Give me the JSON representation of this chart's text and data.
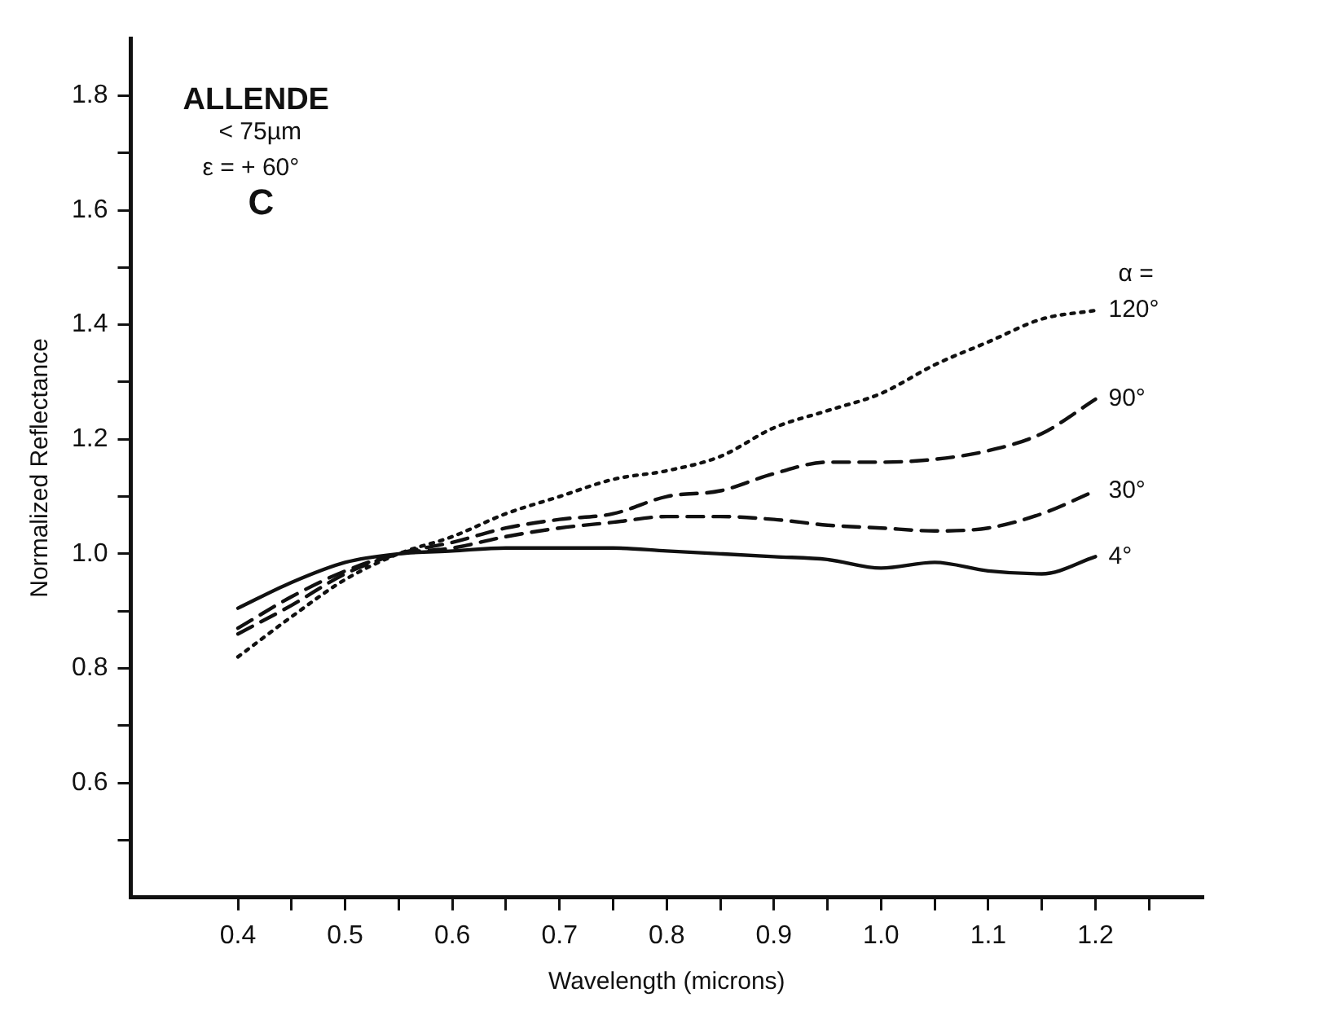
{
  "chart_data": {
    "type": "line",
    "xlabel": "Wavelength (microns)",
    "ylabel": "Normalized Reflectance",
    "legend_title": "α =",
    "annotations": [
      "ALLENDE",
      "< 75µm",
      "ε = + 60°",
      "C"
    ],
    "x": [
      0.4,
      0.45,
      0.5,
      0.55,
      0.6,
      0.65,
      0.7,
      0.75,
      0.8,
      0.85,
      0.9,
      0.95,
      1.0,
      1.05,
      1.1,
      1.15,
      1.2
    ],
    "series": [
      {
        "name": "120°",
        "color": "#111111",
        "line_style": "dotted",
        "values": [
          0.82,
          0.89,
          0.955,
          1.0,
          1.03,
          1.07,
          1.1,
          1.13,
          1.145,
          1.17,
          1.22,
          1.25,
          1.28,
          1.33,
          1.37,
          1.41,
          1.425
        ]
      },
      {
        "name": "90°",
        "color": "#111111",
        "line_style": "dashed",
        "values": [
          0.86,
          0.91,
          0.965,
          1.0,
          1.02,
          1.045,
          1.06,
          1.07,
          1.1,
          1.11,
          1.14,
          1.16,
          1.16,
          1.165,
          1.18,
          1.21,
          1.27
        ]
      },
      {
        "name": "30°",
        "color": "#111111",
        "line_style": "dashed",
        "values": [
          0.87,
          0.925,
          0.97,
          1.0,
          1.01,
          1.03,
          1.045,
          1.055,
          1.065,
          1.065,
          1.06,
          1.05,
          1.045,
          1.04,
          1.045,
          1.07,
          1.11
        ]
      },
      {
        "name": "4°",
        "color": "#111111",
        "line_style": "solid",
        "values": [
          0.905,
          0.95,
          0.985,
          1.0,
          1.005,
          1.01,
          1.01,
          1.01,
          1.005,
          1.0,
          0.995,
          0.99,
          0.975,
          0.985,
          0.97,
          0.965,
          0.995
        ]
      }
    ],
    "xlim": [
      0.3,
      1.3
    ],
    "xticks": [
      0.4,
      {
        "value": 0.45,
        "label": null
      },
      0.5,
      {
        "value": 0.55,
        "label": null
      },
      0.6,
      {
        "value": 0.65,
        "label": null
      },
      0.7,
      {
        "value": 0.75,
        "label": null
      },
      0.8,
      {
        "value": 0.85,
        "label": null
      },
      0.9,
      {
        "value": 0.95,
        "label": null
      },
      {
        "value": 1.0,
        "label": "1.0"
      },
      {
        "value": 1.05,
        "label": null
      },
      1.1,
      {
        "value": 1.15,
        "label": null
      },
      1.2,
      {
        "value": 1.25,
        "label": null
      }
    ],
    "ylim": [
      0.4,
      1.9
    ],
    "yticks": [
      {
        "value": 0.5,
        "label": null
      },
      0.6,
      {
        "value": 0.7,
        "label": null
      },
      0.8,
      {
        "value": 0.9,
        "label": null
      },
      {
        "value": 1.0,
        "label": "1.0"
      },
      {
        "value": 1.1,
        "label": null
      },
      1.2,
      {
        "value": 1.3,
        "label": null
      },
      1.4,
      {
        "value": 1.5,
        "label": null
      },
      1.6,
      {
        "value": 1.7,
        "label": null
      },
      1.8
    ],
    "grid": false,
    "legend": false,
    "marker": "none"
  }
}
